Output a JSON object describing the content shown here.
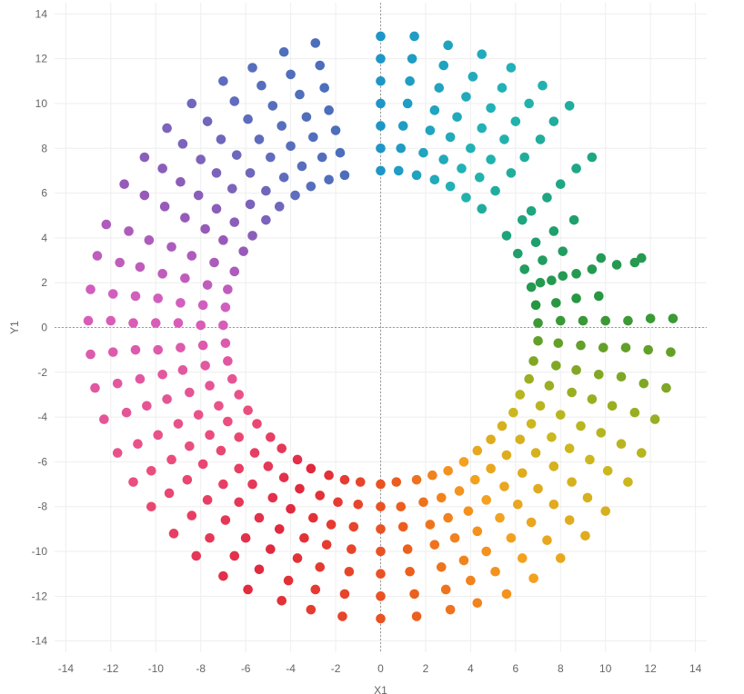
{
  "chart_data": {
    "type": "scatter",
    "title": "",
    "xlabel": "X1",
    "ylabel": "Y1",
    "xlim": [
      -14.5,
      14.5
    ],
    "ylim": [
      -14.5,
      14.5
    ],
    "xticks": [
      -14,
      -12,
      -10,
      -8,
      -6,
      -4,
      -2,
      0,
      2,
      4,
      6,
      8,
      10,
      12,
      14
    ],
    "yticks": [
      -14,
      -12,
      -10,
      -8,
      -6,
      -4,
      -2,
      0,
      2,
      4,
      6,
      8,
      10,
      12,
      14
    ],
    "grid": true,
    "legend": "none",
    "zero_lines": "dotted",
    "marker_color_by": "angle (rainbow: blue, cyan, teal, green, olive, yellow, orange, red, pink, magenta, purple)",
    "ring_radii": [
      7,
      8,
      9,
      10,
      11,
      12,
      13
    ],
    "points": [
      [
        0,
        7
      ],
      [
        0,
        8
      ],
      [
        0,
        9
      ],
      [
        0,
        10
      ],
      [
        0,
        11
      ],
      [
        0,
        12
      ],
      [
        0,
        13
      ],
      [
        0.8,
        7
      ],
      [
        0.9,
        8
      ],
      [
        1.0,
        9
      ],
      [
        1.2,
        10
      ],
      [
        1.3,
        11
      ],
      [
        1.4,
        12
      ],
      [
        1.5,
        13
      ],
      [
        1.6,
        6.8
      ],
      [
        1.9,
        7.8
      ],
      [
        2.2,
        8.8
      ],
      [
        2.4,
        9.7
      ],
      [
        2.6,
        10.7
      ],
      [
        2.8,
        11.7
      ],
      [
        3.0,
        12.6
      ],
      [
        2.4,
        6.6
      ],
      [
        2.8,
        7.5
      ],
      [
        3.1,
        8.5
      ],
      [
        3.4,
        9.4
      ],
      [
        3.8,
        10.3
      ],
      [
        4.1,
        11.2
      ],
      [
        4.5,
        12.2
      ],
      [
        3.1,
        6.3
      ],
      [
        3.6,
        7.1
      ],
      [
        4.0,
        8.0
      ],
      [
        4.5,
        8.9
      ],
      [
        4.9,
        9.8
      ],
      [
        5.4,
        10.7
      ],
      [
        5.8,
        11.6
      ],
      [
        3.8,
        5.8
      ],
      [
        4.4,
        6.7
      ],
      [
        4.9,
        7.5
      ],
      [
        5.5,
        8.4
      ],
      [
        6.0,
        9.2
      ],
      [
        6.6,
        10.0
      ],
      [
        7.2,
        10.8
      ],
      [
        4.5,
        5.3
      ],
      [
        5.1,
        6.1
      ],
      [
        5.8,
        6.9
      ],
      [
        6.4,
        7.6
      ],
      [
        7.1,
        8.4
      ],
      [
        7.7,
        9.2
      ],
      [
        8.4,
        9.9
      ],
      [
        5.6,
        4.1
      ],
      [
        6.3,
        4.8
      ],
      [
        6.7,
        5.2
      ],
      [
        7.4,
        5.8
      ],
      [
        8.0,
        6.4
      ],
      [
        8.7,
        7.1
      ],
      [
        9.4,
        7.6
      ],
      [
        6.1,
        3.3
      ],
      [
        6.4,
        2.6
      ],
      [
        6.9,
        3.8
      ],
      [
        7.2,
        3.0
      ],
      [
        7.7,
        4.3
      ],
      [
        8.1,
        3.4
      ],
      [
        8.6,
        4.8
      ],
      [
        6.7,
        1.8
      ],
      [
        7.1,
        2.0
      ],
      [
        7.6,
        2.1
      ],
      [
        8.1,
        2.3
      ],
      [
        8.7,
        2.4
      ],
      [
        9.4,
        2.6
      ],
      [
        9.8,
        3.1
      ],
      [
        6.9,
        1.0
      ],
      [
        7.8,
        1.1
      ],
      [
        8.7,
        1.3
      ],
      [
        9.7,
        1.4
      ],
      [
        10.5,
        2.8
      ],
      [
        11.3,
        2.9
      ],
      [
        11.6,
        3.1
      ],
      [
        7.0,
        0.2
      ],
      [
        8.0,
        0.3
      ],
      [
        9.0,
        0.3
      ],
      [
        10.0,
        0.3
      ],
      [
        11.0,
        0.3
      ],
      [
        12.0,
        0.4
      ],
      [
        13.0,
        0.4
      ],
      [
        7.0,
        -0.6
      ],
      [
        7.9,
        -0.7
      ],
      [
        8.9,
        -0.8
      ],
      [
        9.9,
        -0.9
      ],
      [
        10.9,
        -0.9
      ],
      [
        11.9,
        -1.0
      ],
      [
        12.9,
        -1.1
      ],
      [
        6.8,
        -1.5
      ],
      [
        7.8,
        -1.7
      ],
      [
        8.7,
        -1.9
      ],
      [
        9.7,
        -2.1
      ],
      [
        10.7,
        -2.2
      ],
      [
        11.7,
        -2.5
      ],
      [
        12.7,
        -2.7
      ],
      [
        6.6,
        -2.3
      ],
      [
        7.5,
        -2.6
      ],
      [
        8.5,
        -2.9
      ],
      [
        9.4,
        -3.2
      ],
      [
        10.3,
        -3.5
      ],
      [
        11.3,
        -3.8
      ],
      [
        12.2,
        -4.1
      ],
      [
        6.2,
        -3.0
      ],
      [
        7.1,
        -3.5
      ],
      [
        8.0,
        -3.9
      ],
      [
        8.9,
        -4.4
      ],
      [
        9.8,
        -4.7
      ],
      [
        10.7,
        -5.2
      ],
      [
        11.6,
        -5.6
      ],
      [
        5.9,
        -3.8
      ],
      [
        6.7,
        -4.3
      ],
      [
        7.6,
        -4.9
      ],
      [
        8.4,
        -5.4
      ],
      [
        9.3,
        -5.9
      ],
      [
        10.1,
        -6.4
      ],
      [
        11.0,
        -6.9
      ],
      [
        5.4,
        -4.4
      ],
      [
        6.2,
        -5.0
      ],
      [
        6.9,
        -5.6
      ],
      [
        7.7,
        -6.2
      ],
      [
        8.5,
        -6.9
      ],
      [
        9.2,
        -7.6
      ],
      [
        10.0,
        -8.2
      ],
      [
        4.9,
        -5.0
      ],
      [
        5.6,
        -5.7
      ],
      [
        6.3,
        -6.5
      ],
      [
        7.0,
        -7.2
      ],
      [
        7.7,
        -7.9
      ],
      [
        8.4,
        -8.6
      ],
      [
        9.1,
        -9.3
      ],
      [
        4.3,
        -5.5
      ],
      [
        4.9,
        -6.3
      ],
      [
        5.5,
        -7.1
      ],
      [
        6.1,
        -7.9
      ],
      [
        6.7,
        -8.7
      ],
      [
        7.4,
        -9.5
      ],
      [
        8.0,
        -10.3
      ],
      [
        3.7,
        -6.0
      ],
      [
        4.2,
        -6.8
      ],
      [
        4.7,
        -7.7
      ],
      [
        5.3,
        -8.5
      ],
      [
        5.8,
        -9.4
      ],
      [
        6.3,
        -10.3
      ],
      [
        6.8,
        -11.2
      ],
      [
        3.0,
        -6.4
      ],
      [
        3.5,
        -7.3
      ],
      [
        3.9,
        -8.2
      ],
      [
        4.3,
        -9.1
      ],
      [
        4.7,
        -10.0
      ],
      [
        5.1,
        -10.9
      ],
      [
        5.6,
        -11.9
      ],
      [
        2.3,
        -6.6
      ],
      [
        2.7,
        -7.6
      ],
      [
        3.0,
        -8.5
      ],
      [
        3.3,
        -9.4
      ],
      [
        3.7,
        -10.4
      ],
      [
        4.0,
        -11.3
      ],
      [
        4.3,
        -12.3
      ],
      [
        1.6,
        -6.8
      ],
      [
        1.9,
        -7.8
      ],
      [
        2.2,
        -8.8
      ],
      [
        2.4,
        -9.7
      ],
      [
        2.7,
        -10.7
      ],
      [
        2.9,
        -11.7
      ],
      [
        3.1,
        -12.6
      ],
      [
        0.7,
        -6.9
      ],
      [
        0.9,
        -8.0
      ],
      [
        1.0,
        -8.9
      ],
      [
        1.2,
        -9.9
      ],
      [
        1.3,
        -10.9
      ],
      [
        1.5,
        -11.9
      ],
      [
        1.6,
        -12.9
      ],
      [
        0.0,
        -7.0
      ],
      [
        0.0,
        -8.0
      ],
      [
        0.0,
        -9.0
      ],
      [
        0.0,
        -10.0
      ],
      [
        0.0,
        -11.0
      ],
      [
        0.0,
        -12.0
      ],
      [
        0.0,
        -13.0
      ],
      [
        -0.9,
        -6.9
      ],
      [
        -1.0,
        -7.9
      ],
      [
        -1.2,
        -8.9
      ],
      [
        -1.3,
        -9.9
      ],
      [
        -1.4,
        -10.9
      ],
      [
        -1.6,
        -11.9
      ],
      [
        -1.7,
        -12.9
      ],
      [
        -1.6,
        -6.8
      ],
      [
        -1.9,
        -7.8
      ],
      [
        -2.2,
        -8.8
      ],
      [
        -2.4,
        -9.7
      ],
      [
        -2.7,
        -10.7
      ],
      [
        -2.9,
        -11.7
      ],
      [
        -3.1,
        -12.6
      ],
      [
        -2.3,
        -6.6
      ],
      [
        -2.7,
        -7.5
      ],
      [
        -3.0,
        -8.5
      ],
      [
        -3.4,
        -9.4
      ],
      [
        -3.7,
        -10.3
      ],
      [
        -4.1,
        -11.3
      ],
      [
        -4.4,
        -12.2
      ],
      [
        -3.1,
        -6.3
      ],
      [
        -3.6,
        -7.2
      ],
      [
        -4.0,
        -8.1
      ],
      [
        -4.5,
        -9.0
      ],
      [
        -4.9,
        -9.9
      ],
      [
        -5.4,
        -10.8
      ],
      [
        -5.9,
        -11.7
      ],
      [
        -3.7,
        -5.9
      ],
      [
        -4.3,
        -6.7
      ],
      [
        -4.8,
        -7.6
      ],
      [
        -5.4,
        -8.5
      ],
      [
        -6.0,
        -9.4
      ],
      [
        -6.5,
        -10.2
      ],
      [
        -7.0,
        -11.1
      ],
      [
        -4.4,
        -5.4
      ],
      [
        -5.0,
        -6.2
      ],
      [
        -5.7,
        -7.0
      ],
      [
        -6.3,
        -7.8
      ],
      [
        -6.9,
        -8.6
      ],
      [
        -7.6,
        -9.4
      ],
      [
        -8.2,
        -10.2
      ],
      [
        -4.9,
        -4.9
      ],
      [
        -5.6,
        -5.6
      ],
      [
        -6.3,
        -6.3
      ],
      [
        -7.0,
        -7.0
      ],
      [
        -7.7,
        -7.7
      ],
      [
        -8.4,
        -8.4
      ],
      [
        -9.2,
        -9.2
      ],
      [
        -5.5,
        -4.3
      ],
      [
        -6.3,
        -4.9
      ],
      [
        -7.1,
        -5.5
      ],
      [
        -7.9,
        -6.1
      ],
      [
        -8.6,
        -6.8
      ],
      [
        -9.4,
        -7.4
      ],
      [
        -10.2,
        -8.0
      ],
      [
        -5.9,
        -3.7
      ],
      [
        -6.8,
        -4.2
      ],
      [
        -7.6,
        -4.8
      ],
      [
        -8.5,
        -5.3
      ],
      [
        -9.3,
        -5.9
      ],
      [
        -10.2,
        -6.4
      ],
      [
        -11.0,
        -6.9
      ],
      [
        -6.3,
        -3.0
      ],
      [
        -7.2,
        -3.5
      ],
      [
        -8.1,
        -3.9
      ],
      [
        -9.0,
        -4.3
      ],
      [
        -9.9,
        -4.8
      ],
      [
        -10.8,
        -5.2
      ],
      [
        -11.7,
        -5.6
      ],
      [
        -6.6,
        -2.3
      ],
      [
        -7.6,
        -2.6
      ],
      [
        -8.5,
        -2.9
      ],
      [
        -9.5,
        -3.2
      ],
      [
        -10.4,
        -3.5
      ],
      [
        -11.3,
        -3.8
      ],
      [
        -12.3,
        -4.1
      ],
      [
        -6.8,
        -1.5
      ],
      [
        -7.8,
        -1.7
      ],
      [
        -8.8,
        -1.9
      ],
      [
        -9.7,
        -2.1
      ],
      [
        -10.7,
        -2.3
      ],
      [
        -11.7,
        -2.5
      ],
      [
        -12.7,
        -2.7
      ],
      [
        -6.9,
        -0.7
      ],
      [
        -7.9,
        -0.8
      ],
      [
        -8.9,
        -0.9
      ],
      [
        -9.9,
        -1.0
      ],
      [
        -10.9,
        -1.0
      ],
      [
        -11.9,
        -1.1
      ],
      [
        -12.9,
        -1.2
      ],
      [
        -7.0,
        0.1
      ],
      [
        -8.0,
        0.1
      ],
      [
        -9.0,
        0.2
      ],
      [
        -10.0,
        0.2
      ],
      [
        -11.0,
        0.2
      ],
      [
        -12.0,
        0.3
      ],
      [
        -13.0,
        0.3
      ],
      [
        -6.9,
        0.9
      ],
      [
        -7.9,
        1.0
      ],
      [
        -8.9,
        1.1
      ],
      [
        -9.9,
        1.3
      ],
      [
        -10.9,
        1.4
      ],
      [
        -11.9,
        1.5
      ],
      [
        -12.9,
        1.7
      ],
      [
        -6.8,
        1.7
      ],
      [
        -7.7,
        1.9
      ],
      [
        -8.7,
        2.2
      ],
      [
        -9.7,
        2.4
      ],
      [
        -10.7,
        2.7
      ],
      [
        -11.6,
        2.9
      ],
      [
        -12.6,
        3.2
      ],
      [
        -6.5,
        2.5
      ],
      [
        -7.4,
        2.9
      ],
      [
        -8.4,
        3.2
      ],
      [
        -9.3,
        3.6
      ],
      [
        -10.3,
        3.9
      ],
      [
        -11.2,
        4.3
      ],
      [
        -12.2,
        4.6
      ],
      [
        -6.1,
        3.4
      ],
      [
        -7.0,
        3.9
      ],
      [
        -7.8,
        4.4
      ],
      [
        -8.7,
        4.9
      ],
      [
        -9.6,
        5.4
      ],
      [
        -10.5,
        5.9
      ],
      [
        -11.4,
        6.4
      ],
      [
        -5.7,
        4.1
      ],
      [
        -6.5,
        4.7
      ],
      [
        -7.3,
        5.3
      ],
      [
        -8.1,
        5.9
      ],
      [
        -8.9,
        6.5
      ],
      [
        -9.7,
        7.1
      ],
      [
        -10.5,
        7.6
      ],
      [
        -5.1,
        4.8
      ],
      [
        -5.8,
        5.5
      ],
      [
        -6.6,
        6.2
      ],
      [
        -7.3,
        6.9
      ],
      [
        -8.0,
        7.5
      ],
      [
        -8.8,
        8.2
      ],
      [
        -9.5,
        8.9
      ],
      [
        -4.5,
        5.4
      ],
      [
        -5.1,
        6.1
      ],
      [
        -5.8,
        6.9
      ],
      [
        -6.4,
        7.7
      ],
      [
        -7.1,
        8.4
      ],
      [
        -7.7,
        9.2
      ],
      [
        -8.4,
        10.0
      ],
      [
        -3.8,
        5.9
      ],
      [
        -4.3,
        6.7
      ],
      [
        -4.9,
        7.6
      ],
      [
        -5.4,
        8.4
      ],
      [
        -5.9,
        9.3
      ],
      [
        -6.5,
        10.1
      ],
      [
        -7.0,
        11.0
      ],
      [
        -3.1,
        6.3
      ],
      [
        -3.5,
        7.2
      ],
      [
        -4.0,
        8.1
      ],
      [
        -4.4,
        9.0
      ],
      [
        -4.8,
        9.9
      ],
      [
        -5.3,
        10.8
      ],
      [
        -5.7,
        11.6
      ],
      [
        -2.3,
        6.6
      ],
      [
        -2.6,
        7.6
      ],
      [
        -3.0,
        8.5
      ],
      [
        -3.3,
        9.4
      ],
      [
        -3.6,
        10.4
      ],
      [
        -4.0,
        11.3
      ],
      [
        -4.3,
        12.3
      ],
      [
        -1.6,
        6.8
      ],
      [
        -1.8,
        7.8
      ],
      [
        -2.0,
        8.8
      ],
      [
        -2.3,
        9.7
      ],
      [
        -2.5,
        10.7
      ],
      [
        -2.7,
        11.7
      ],
      [
        -2.9,
        12.7
      ]
    ]
  }
}
